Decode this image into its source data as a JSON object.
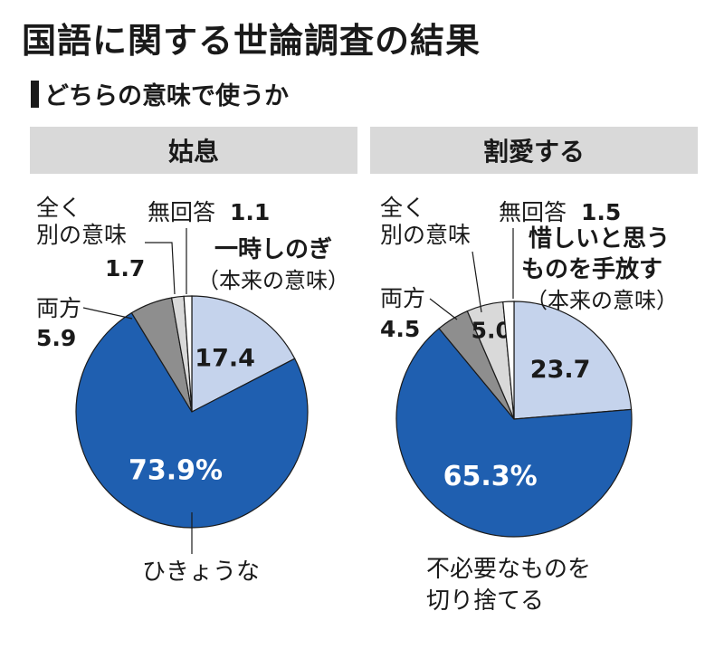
{
  "title": "国語に関する世論調査の結果",
  "subtitle": "どちらの意味で使うか",
  "colors": {
    "main": "#1f5fb0",
    "light": "#c5d3ec",
    "gray": "#8e8e8e",
    "lightgray": "#d9d9d9",
    "white": "#ffffff",
    "header_bg": "#d9d9d9"
  },
  "chart_data": [
    {
      "type": "pie",
      "title": "姑息",
      "unit": "%",
      "slices": [
        {
          "label": "一時しのぎ（本来の意味）",
          "value": 17.4,
          "value_label": "17.4",
          "color": "light"
        },
        {
          "label": "ひきょうな",
          "value": 73.9,
          "value_label": "73.9%",
          "color": "main"
        },
        {
          "label": "両方",
          "value": 5.9,
          "value_label": "5.9",
          "color": "gray"
        },
        {
          "label": "全く別の意味",
          "value": 1.7,
          "value_label": "1.7",
          "color": "lightgray"
        },
        {
          "label": "無回答",
          "value": 1.1,
          "value_label": "1.1",
          "color": "white"
        }
      ]
    },
    {
      "type": "pie",
      "title": "割愛する",
      "unit": "%",
      "slices": [
        {
          "label": "惜しいと思うものを手放す（本来の意味）",
          "value": 23.7,
          "value_label": "23.7",
          "color": "light"
        },
        {
          "label": "不必要なものを切り捨てる",
          "value": 65.3,
          "value_label": "65.3%",
          "color": "main"
        },
        {
          "label": "両方",
          "value": 4.5,
          "value_label": "4.5",
          "color": "gray"
        },
        {
          "label": "全く別の意味",
          "value": 5.0,
          "value_label": "5.0",
          "color": "lightgray"
        },
        {
          "label": "無回答",
          "value": 1.5,
          "value_label": "1.5",
          "color": "white"
        }
      ]
    }
  ],
  "labels": {
    "left": {
      "no_answer": "無回答",
      "no_answer_value": "1.1",
      "other_line1": "全く",
      "other_line2": "別の意味",
      "other_value": "1.7",
      "both": "両方",
      "both_value": "5.9",
      "original_line1": "一時しのぎ",
      "original_line2": "（本来の意味）",
      "main_label": "ひきょうな"
    },
    "right": {
      "no_answer": "無回答",
      "no_answer_value": "1.5",
      "other_line1": "全く",
      "other_line2": "別の意味",
      "both": "両方",
      "both_value": "4.5",
      "original_line1": "惜しいと思う",
      "original_line2": "ものを手放す",
      "original_line3": "（本来の意味）",
      "main_label_line1": "不必要なものを",
      "main_label_line2": "切り捨てる"
    }
  }
}
